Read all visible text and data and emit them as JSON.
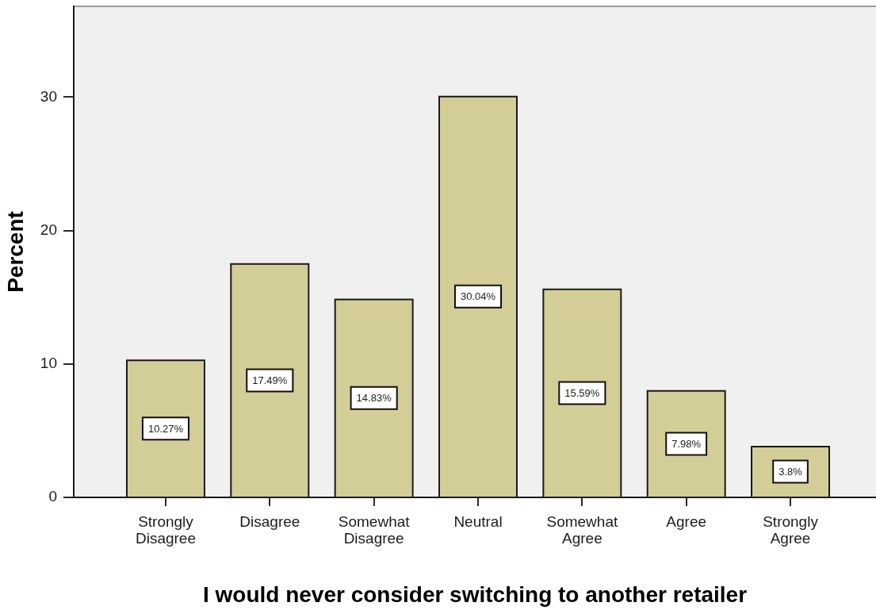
{
  "chart_data": {
    "type": "bar",
    "xlabel": "I would never consider switching to another retailer",
    "ylabel": "Percent",
    "categories": [
      "Strongly Disagree",
      "Disagree",
      "Somewhat Disagree",
      "Neutral",
      "Somewhat Agree",
      "Agree",
      "Strongly Agree"
    ],
    "values": [
      10.27,
      17.49,
      14.83,
      30.04,
      15.59,
      7.98,
      3.8
    ],
    "value_labels": [
      "10.27%",
      "17.49%",
      "14.83%",
      "30.04%",
      "15.59%",
      "7.98%",
      "3.8%"
    ],
    "color": "#d3ce97",
    "ylim": [
      0,
      36.8
    ],
    "yticks": [
      0,
      10,
      20,
      30
    ]
  }
}
